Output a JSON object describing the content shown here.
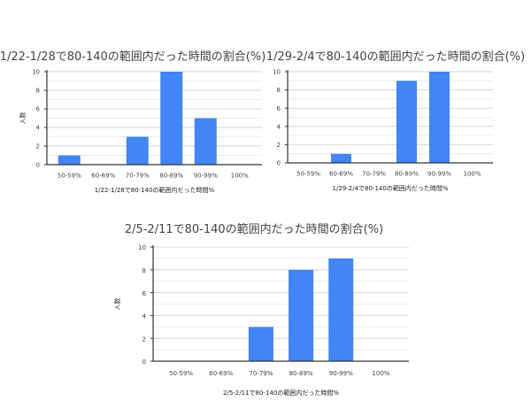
{
  "chart_data": [
    {
      "type": "bar",
      "title": "1/22-1/28で80-140の範囲内だった時間の割合(%)",
      "xlabel": "1/22-1/28で80-140の範囲内だった時間%",
      "ylabel": "人数",
      "categories": [
        "50-59%",
        "60-69%",
        "70-79%",
        "80-89%",
        "90-99%",
        "100%"
      ],
      "values": [
        1,
        0,
        3,
        10,
        5,
        0
      ],
      "ylim": [
        0,
        10
      ],
      "yticks": [
        "0",
        "2",
        "4",
        "6",
        "8",
        "10"
      ],
      "grid": true,
      "color": "#4285f4"
    },
    {
      "type": "bar",
      "title": "1/29-2/4で80-140の範囲内だった時間の割合(%)",
      "xlabel": "1/29-2/4で80-140の範囲内だった時間%",
      "ylabel": "",
      "categories": [
        "50-59%",
        "60-69%",
        "70-79%",
        "80-89%",
        "90-99%",
        "100%"
      ],
      "values": [
        0,
        1,
        0,
        9,
        10,
        0
      ],
      "ylim": [
        0,
        10
      ],
      "yticks": [
        "0",
        "2",
        "4",
        "6",
        "8",
        "10"
      ],
      "grid": true,
      "color": "#4285f4"
    },
    {
      "type": "bar",
      "title": "2/5-2/11で80-140の範囲内だった時間の割合(%)",
      "xlabel": "2/5-2/11で80-140の範囲内だった時間%",
      "ylabel": "人数",
      "categories": [
        "50-59%",
        "60-69%",
        "70-79%",
        "80-89%",
        "90-99%",
        "100%"
      ],
      "values": [
        0,
        0,
        3,
        8,
        9,
        0
      ],
      "ylim": [
        0,
        10
      ],
      "yticks": [
        "0",
        "2",
        "4",
        "6",
        "8",
        "10"
      ],
      "grid": true,
      "color": "#4285f4"
    }
  ]
}
